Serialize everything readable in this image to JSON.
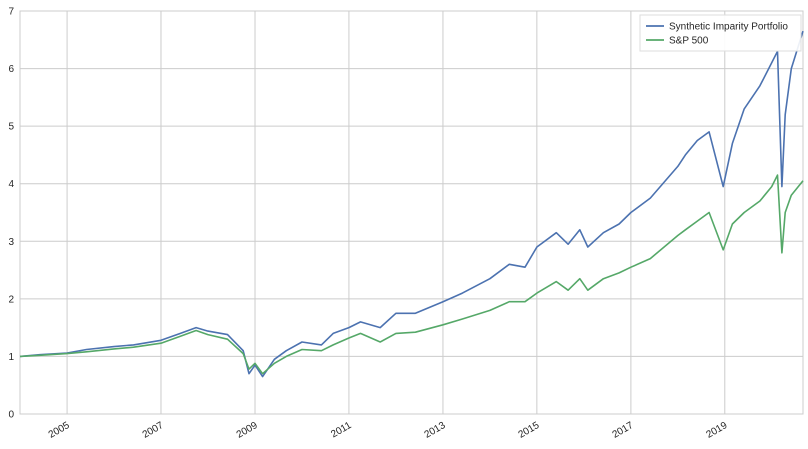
{
  "chart_data": {
    "type": "line",
    "title": "",
    "xlabel": "",
    "ylabel": "",
    "xlim": [
      "2004-01-01",
      "2020-08-31"
    ],
    "ylim": [
      0,
      7
    ],
    "grid": true,
    "legend_position": "top-right",
    "x_ticks": [
      "2005",
      "2007",
      "2009",
      "2011",
      "2013",
      "2015",
      "2017",
      "2019"
    ],
    "y_ticks": [
      "0",
      "1",
      "2",
      "3",
      "4",
      "5",
      "6",
      "7"
    ],
    "series": [
      {
        "name": "Synthetic Imparity Portfolio",
        "color": "#4c72b0",
        "x": [
          "2004-01-01",
          "2004-06-01",
          "2005-01-01",
          "2005-06-01",
          "2006-01-01",
          "2006-06-01",
          "2007-01-01",
          "2007-06-01",
          "2007-10-01",
          "2008-01-01",
          "2008-06-01",
          "2008-10-01",
          "2008-11-15",
          "2009-01-01",
          "2009-03-01",
          "2009-06-01",
          "2009-09-01",
          "2010-01-01",
          "2010-06-01",
          "2010-09-01",
          "2011-01-01",
          "2011-04-01",
          "2011-09-01",
          "2012-01-01",
          "2012-06-01",
          "2013-01-01",
          "2013-06-01",
          "2014-01-01",
          "2014-06-01",
          "2014-10-01",
          "2015-01-01",
          "2015-06-01",
          "2015-09-01",
          "2015-12-01",
          "2016-02-01",
          "2016-06-01",
          "2016-10-01",
          "2017-01-01",
          "2017-06-01",
          "2018-01-01",
          "2018-03-01",
          "2018-06-01",
          "2018-09-01",
          "2018-12-20",
          "2019-03-01",
          "2019-06-01",
          "2019-10-01",
          "2020-01-01",
          "2020-02-15",
          "2020-03-20",
          "2020-04-15",
          "2020-06-01",
          "2020-08-31"
        ],
        "values": [
          1.0,
          1.03,
          1.06,
          1.12,
          1.17,
          1.2,
          1.28,
          1.4,
          1.5,
          1.44,
          1.38,
          1.1,
          0.7,
          0.85,
          0.65,
          0.95,
          1.1,
          1.25,
          1.2,
          1.4,
          1.5,
          1.6,
          1.5,
          1.75,
          1.75,
          1.95,
          2.1,
          2.35,
          2.6,
          2.55,
          2.9,
          3.15,
          2.95,
          3.2,
          2.9,
          3.15,
          3.3,
          3.5,
          3.75,
          4.3,
          4.5,
          4.75,
          4.9,
          3.95,
          4.7,
          5.3,
          5.7,
          6.1,
          6.3,
          3.95,
          5.2,
          6.0,
          6.65
        ]
      },
      {
        "name": "S&P 500",
        "color": "#55a868",
        "x": [
          "2004-01-01",
          "2004-06-01",
          "2005-01-01",
          "2005-06-01",
          "2006-01-01",
          "2006-06-01",
          "2007-01-01",
          "2007-06-01",
          "2007-10-01",
          "2008-01-01",
          "2008-06-01",
          "2008-10-01",
          "2008-11-15",
          "2009-01-01",
          "2009-03-01",
          "2009-06-01",
          "2009-09-01",
          "2010-01-01",
          "2010-06-01",
          "2010-09-01",
          "2011-01-01",
          "2011-04-01",
          "2011-09-01",
          "2012-01-01",
          "2012-06-01",
          "2013-01-01",
          "2013-06-01",
          "2014-01-01",
          "2014-06-01",
          "2014-10-01",
          "2015-01-01",
          "2015-06-01",
          "2015-09-01",
          "2015-12-01",
          "2016-02-01",
          "2016-06-01",
          "2016-10-01",
          "2017-01-01",
          "2017-06-01",
          "2018-01-01",
          "2018-03-01",
          "2018-06-01",
          "2018-09-01",
          "2018-12-20",
          "2019-03-01",
          "2019-06-01",
          "2019-10-01",
          "2020-01-01",
          "2020-02-15",
          "2020-03-20",
          "2020-04-15",
          "2020-06-01",
          "2020-08-31"
        ],
        "values": [
          1.0,
          1.02,
          1.05,
          1.08,
          1.13,
          1.16,
          1.23,
          1.35,
          1.45,
          1.38,
          1.3,
          1.05,
          0.78,
          0.88,
          0.7,
          0.88,
          1.0,
          1.12,
          1.1,
          1.2,
          1.32,
          1.4,
          1.25,
          1.4,
          1.42,
          1.55,
          1.65,
          1.8,
          1.95,
          1.95,
          2.1,
          2.3,
          2.15,
          2.35,
          2.15,
          2.35,
          2.45,
          2.55,
          2.7,
          3.1,
          3.2,
          3.35,
          3.5,
          2.85,
          3.3,
          3.5,
          3.7,
          3.95,
          4.15,
          2.8,
          3.5,
          3.8,
          4.05
        ]
      }
    ]
  }
}
